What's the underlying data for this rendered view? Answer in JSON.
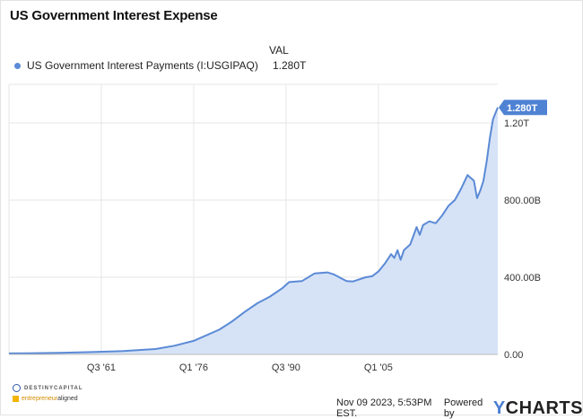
{
  "title": "US Government Interest Expense",
  "legend": {
    "column_header": "VAL",
    "series_name": "US Government Interest Payments (I:USGIPAQ)",
    "series_value": "1.280T"
  },
  "colors": {
    "line": "#5b8ad6",
    "fill": "#d6e3f6",
    "grid": "#e6e6e6",
    "callout": "#4f82d3"
  },
  "chart_data": {
    "type": "area",
    "x_tick_labels": [
      "Q3 '61",
      "Q1 '76",
      "Q3 '90",
      "Q1 '05"
    ],
    "x_tick_positions": [
      1961.5,
      1976.0,
      1990.5,
      2005.0
    ],
    "y_tick_labels": [
      "0.00",
      "400.00B",
      "800.00B",
      "1.20T"
    ],
    "y_tick_values": [
      0,
      400,
      800,
      1200
    ],
    "ylim": [
      0,
      1400
    ],
    "xlim": [
      1947.0,
      2023.75
    ],
    "units": "billions USD",
    "grid": true,
    "last_value_label": "1.280T",
    "x": [
      1947,
      1950,
      1955,
      1960,
      1965,
      1970,
      1973,
      1976,
      1980,
      1982,
      1984,
      1986,
      1988,
      1990,
      1991,
      1993,
      1995,
      1997,
      1998,
      2000,
      2001,
      2003,
      2004,
      2005,
      2006,
      2007,
      2007.5,
      2008,
      2008.5,
      2009,
      2010,
      2011,
      2011.5,
      2012,
      2013,
      2014,
      2015,
      2016,
      2017,
      2018,
      2019,
      2020,
      2020.5,
      2021,
      2021.5,
      2022,
      2022.5,
      2023,
      2023.5,
      2023.75
    ],
    "y": [
      5,
      6,
      8,
      12,
      17,
      28,
      45,
      70,
      128,
      170,
      220,
      265,
      300,
      345,
      375,
      380,
      420,
      425,
      415,
      380,
      378,
      400,
      405,
      430,
      470,
      520,
      500,
      540,
      490,
      540,
      570,
      660,
      620,
      670,
      690,
      680,
      720,
      770,
      800,
      860,
      930,
      900,
      810,
      850,
      900,
      1000,
      1120,
      1220,
      1260,
      1280
    ]
  },
  "branding": {
    "logo1": "DESTINYCAPITAL",
    "logo2_a": "entrepreneur",
    "logo2_b": "aligned"
  },
  "footer": {
    "timestamp": "Nov 09 2023, 5:53PM EST.",
    "powered_by": "Powered by",
    "brand_y": "Y",
    "brand_rest": "CHARTS"
  }
}
